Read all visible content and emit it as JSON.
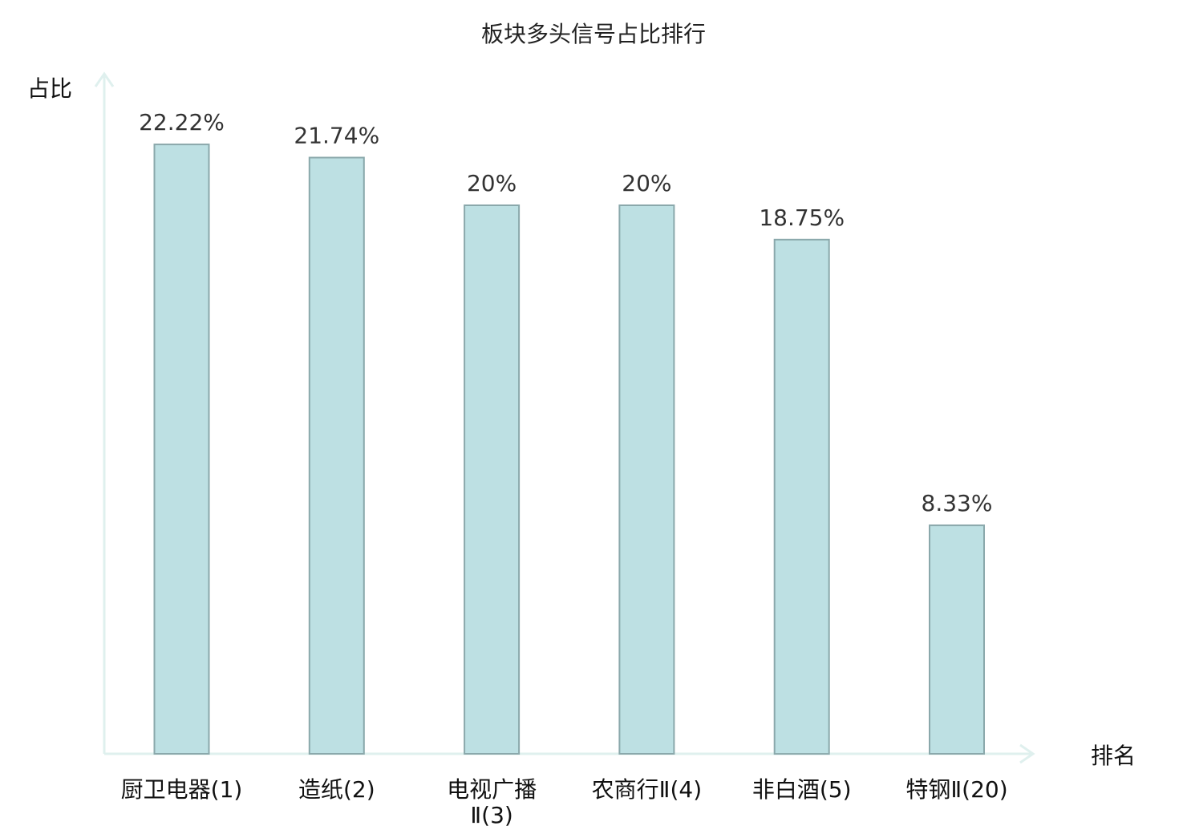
{
  "chart_data": {
    "type": "bar",
    "title": "板块多头信号占比排行",
    "ylabel": "占比",
    "xlabel": "排名",
    "ylim": [
      0,
      25
    ],
    "grid": false,
    "categories": [
      [
        "厨卫电器(1)"
      ],
      [
        "造纸(2)"
      ],
      [
        "电视广播",
        "Ⅱ(3)"
      ],
      [
        "农商行Ⅱ(4)"
      ],
      [
        "非白酒(5)"
      ],
      [
        "特钢Ⅱ(20)"
      ]
    ],
    "values": [
      22.22,
      21.74,
      20,
      20,
      18.75,
      8.33
    ],
    "value_labels": [
      "22.22%",
      "21.74%",
      "20%",
      "20%",
      "18.75%",
      "8.33%"
    ],
    "highlight_index": 5
  },
  "colors": {
    "bar_fill": "#bde0e3",
    "bar_stroke": "#8aa8ab",
    "axis": "#dff0ee",
    "highlight_text": "#e01010",
    "normal_text": "#111111"
  }
}
